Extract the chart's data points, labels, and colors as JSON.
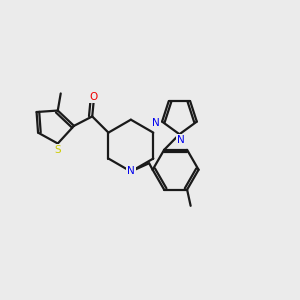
{
  "background_color": "#ebebeb",
  "bond_color": "#1a1a1a",
  "atom_colors": {
    "S": "#cccc00",
    "N": "#0000ee",
    "O": "#ee0000",
    "C": "#1a1a1a"
  },
  "figsize": [
    3.0,
    3.0
  ],
  "dpi": 100,
  "lw": 1.6
}
